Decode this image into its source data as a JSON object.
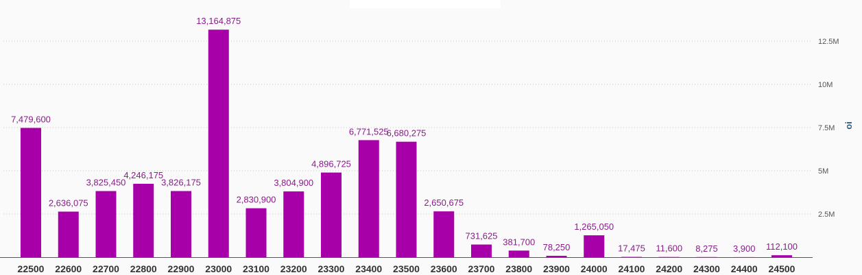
{
  "chart_data": {
    "type": "bar",
    "categories": [
      "22500",
      "22600",
      "22700",
      "22800",
      "22900",
      "23000",
      "23100",
      "23200",
      "23300",
      "23400",
      "23500",
      "23600",
      "23700",
      "23800",
      "23900",
      "24000",
      "24100",
      "24200",
      "24300",
      "24400",
      "24500"
    ],
    "values": [
      7479600,
      2636075,
      3825450,
      4246175,
      3826175,
      13164875,
      2830900,
      3804900,
      4896725,
      6771525,
      6680275,
      2650675,
      731625,
      381700,
      78250,
      1265050,
      17475,
      11600,
      8275,
      3900,
      112100
    ],
    "value_labels": [
      "7,479,600",
      "2,636,075",
      "3,825,450",
      "4,246,175",
      "3,826,175",
      "13,164,875",
      "2,830,900",
      "3,804,900",
      "4,896,725",
      "6,771,525",
      "6,680,275",
      "2,650,675",
      "731,625",
      "381,700",
      "78,250",
      "1,265,050",
      "17,475",
      "11,600",
      "8,275",
      "3,900",
      "112,100"
    ],
    "ylabel": "oi",
    "ylim": [
      0,
      14000000
    ],
    "yticks": [
      2500000,
      5000000,
      7500000,
      10000000,
      12500000
    ],
    "ytick_labels": [
      "2.5M",
      "5M",
      "7.5M",
      "10M",
      "12.5M"
    ],
    "y_axis_side": "right",
    "grid": true,
    "legend": false,
    "bar_color": "#a800a8"
  }
}
